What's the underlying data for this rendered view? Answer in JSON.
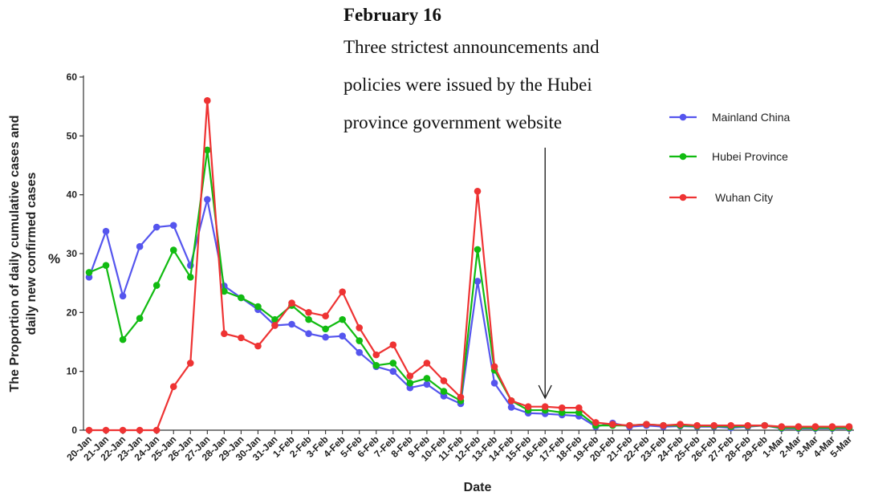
{
  "annotation": {
    "date": "February 16",
    "lines": [
      "Three strictest announcements and",
      "policies were issued by the Hubei",
      "province government website"
    ]
  },
  "chart_data": {
    "type": "line",
    "title": "",
    "xlabel": "Date",
    "ylabel_lines": [
      "The Proportion of daily cumulative cases and",
      "daily new confirmed cases"
    ],
    "ylabel_unit": "%",
    "ylim": [
      0,
      60
    ],
    "yticks": [
      0,
      10,
      20,
      30,
      40,
      50,
      60
    ],
    "grid": false,
    "legend_position": "right",
    "categories": [
      "20-Jan",
      "21-Jan",
      "22-Jan",
      "23-Jan",
      "24-Jan",
      "25-Jan",
      "26-Jan",
      "27-Jan",
      "28-Jan",
      "29-Jan",
      "30-Jan",
      "31-Jan",
      "1-Feb",
      "2-Feb",
      "3-Feb",
      "4-Feb",
      "5-Feb",
      "6-Feb",
      "7-Feb",
      "8-Feb",
      "9-Feb",
      "10-Feb",
      "11-Feb",
      "12-Feb",
      "13-Feb",
      "14-Feb",
      "15-Feb",
      "16-Feb",
      "17-Feb",
      "18-Feb",
      "19-Feb",
      "20-Feb",
      "21-Feb",
      "22-Feb",
      "23-Feb",
      "24-Feb",
      "25-Feb",
      "26-Feb",
      "27-Feb",
      "28-Feb",
      "29-Feb",
      "1-Mar",
      "2-Mar",
      "3-Mar",
      "4-Mar",
      "5-Mar"
    ],
    "arrow_category": "16-Feb",
    "series": [
      {
        "name": "Mainland China",
        "color": "#5555ee",
        "values": [
          26,
          33.8,
          22.8,
          31.2,
          34.5,
          34.8,
          28,
          39.2,
          24.5,
          22.5,
          20.5,
          17.8,
          18,
          16.4,
          15.8,
          16,
          13.2,
          10.8,
          10,
          7.2,
          7.8,
          5.8,
          4.5,
          25.3,
          8,
          3.9,
          2.9,
          2.8,
          2.6,
          2.4,
          0.6,
          1.2,
          0.6,
          0.8,
          0.6,
          0.7,
          0.6,
          0.6,
          0.4,
          0.6,
          0.8,
          0.3,
          0.3,
          0.3,
          0.3,
          0.3
        ]
      },
      {
        "name": "Hubei Province",
        "color": "#11bb11",
        "values": [
          26.8,
          28,
          15.4,
          19,
          24.6,
          30.6,
          26,
          47.6,
          23.6,
          22.5,
          21,
          18.8,
          21.2,
          18.8,
          17.2,
          18.8,
          15.2,
          11,
          11.4,
          8,
          8.8,
          6.6,
          5,
          30.7,
          10.2,
          5,
          3.4,
          3.4,
          3,
          3,
          0.8,
          0.8,
          0.8,
          1,
          0.8,
          0.8,
          0.7,
          0.7,
          0.6,
          0.7,
          0.8,
          0.4,
          0.4,
          0.4,
          0.4,
          0.4
        ]
      },
      {
        "name": "Wuhan City",
        "color": "#ee3333",
        "values": [
          0,
          0,
          0,
          0,
          0,
          7.4,
          11.4,
          56,
          16.4,
          15.7,
          14.3,
          17.8,
          21.6,
          20,
          19.4,
          23.5,
          17.4,
          12.8,
          14.5,
          9.2,
          11.4,
          8.4,
          5.6,
          40.6,
          10.8,
          5,
          4,
          4,
          3.8,
          3.8,
          1.3,
          1,
          0.8,
          1,
          0.8,
          1,
          0.8,
          0.8,
          0.8,
          0.8,
          0.8,
          0.6,
          0.6,
          0.6,
          0.6,
          0.6
        ]
      }
    ]
  }
}
